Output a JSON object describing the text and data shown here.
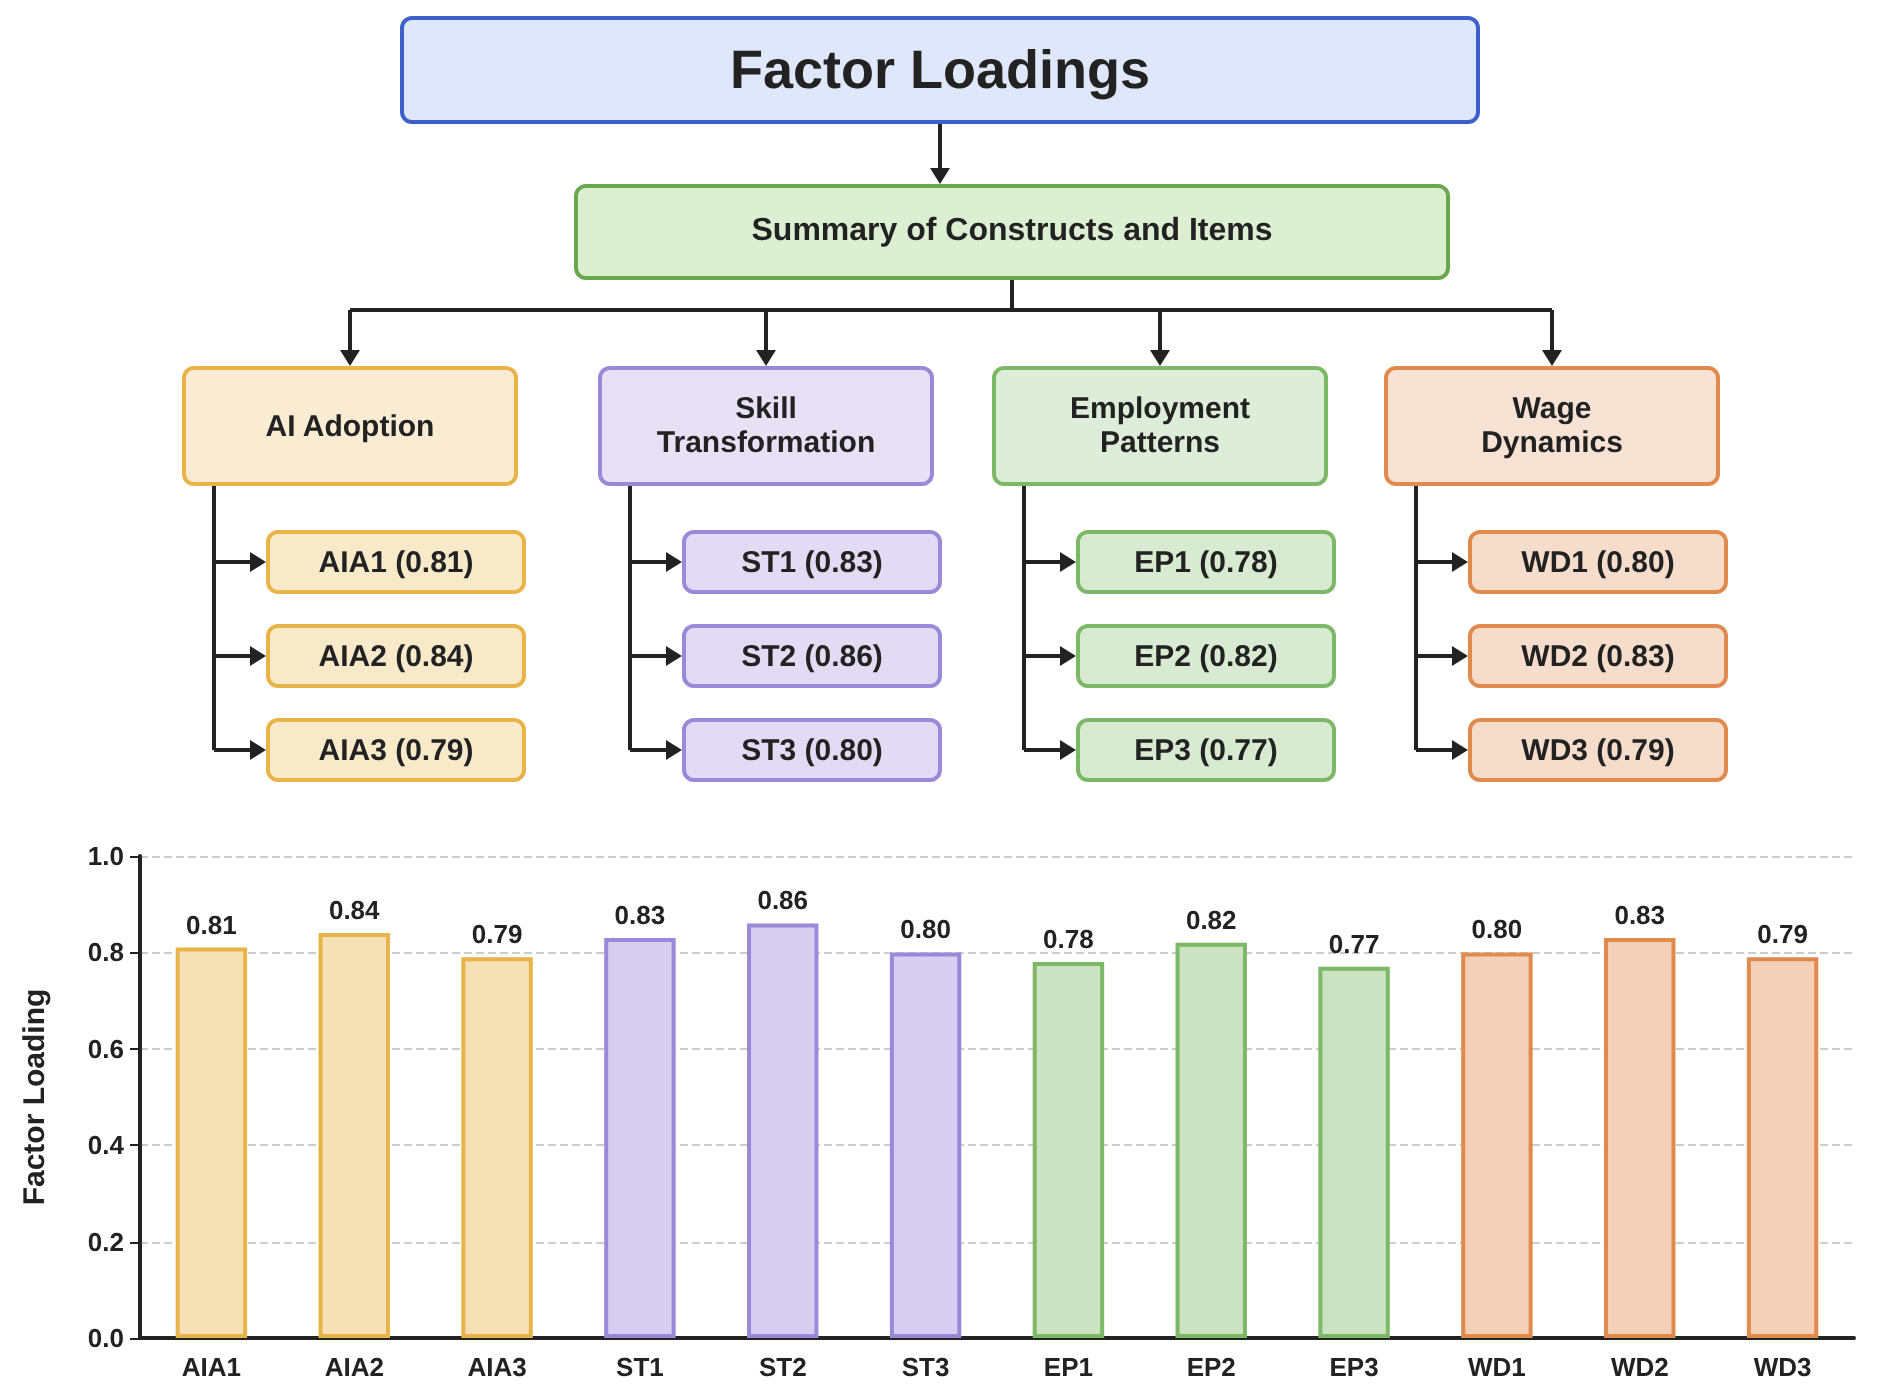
{
  "chart_data": [
    {
      "type": "other",
      "title": "Factor Loadings",
      "subtitle": "Summary of Constructs and Items",
      "annotations": [
        "AI Adoption",
        "Skill Transformation",
        "Employment Patterns",
        "Wage Dynamics",
        "AIA1 (0.81)",
        "AIA2 (0.84)",
        "AIA3 (0.79)",
        "ST1 (0.83)",
        "ST2 (0.86)",
        "ST3 (0.80)",
        "EP1 (0.78)",
        "EP2 (0.82)",
        "EP3 (0.77)",
        "WD1 (0.80)",
        "WD2 (0.83)",
        "WD3 (0.79)"
      ],
      "colors": [
        "#e8b44a",
        "#9a88d8",
        "#7cb866",
        "#e08a4e"
      ]
    },
    {
      "type": "bar",
      "ylabel": "Factor Loading",
      "categories": [
        "AIA1",
        "AIA2",
        "AIA3",
        "ST1",
        "ST2",
        "ST3",
        "EP1",
        "EP2",
        "EP3",
        "WD1",
        "WD2",
        "WD3"
      ],
      "values": [
        0.81,
        0.84,
        0.79,
        0.83,
        0.86,
        0.8,
        0.78,
        0.82,
        0.77,
        0.8,
        0.83,
        0.79
      ],
      "value_labels": [
        "0.81",
        "0.84",
        "0.79",
        "0.83",
        "0.86",
        "0.80",
        "0.78",
        "0.82",
        "0.77",
        "0.80",
        "0.83",
        "0.79"
      ],
      "colors": [
        "#e8b44a",
        "#e8b44a",
        "#e8b44a",
        "#9a88d8",
        "#9a88d8",
        "#9a88d8",
        "#7cb866",
        "#7cb866",
        "#7cb866",
        "#e08a4e",
        "#e08a4e",
        "#e08a4e"
      ],
      "ylim": [
        0,
        1
      ],
      "yticks": [
        {
          "value": 0,
          "label": "0.0"
        },
        {
          "value": 0.2,
          "label": "0.2"
        },
        {
          "value": 0.4,
          "label": "0.4"
        },
        {
          "value": 0.6,
          "label": "0.6"
        },
        {
          "value": 0.8,
          "label": "0.8"
        },
        {
          "value": 1,
          "label": "1.0"
        }
      ],
      "grid": "y"
    }
  ]
}
